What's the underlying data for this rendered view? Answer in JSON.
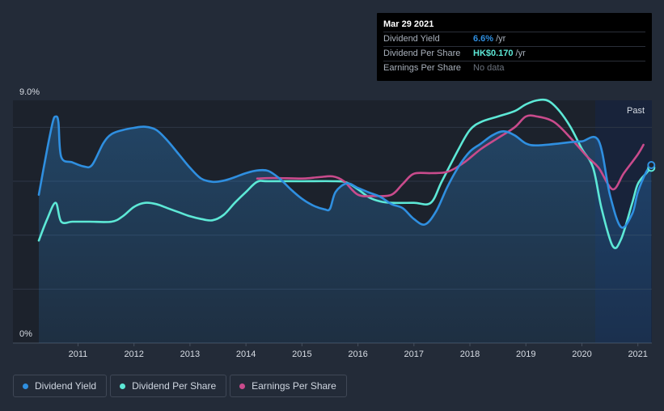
{
  "chart_data": {
    "type": "line",
    "y_top_label": "9.0%",
    "y_bottom_label": "0%",
    "ylim": [
      0,
      9.0
    ],
    "xlim": [
      2010.3,
      2021.25
    ],
    "x_ticks": [
      "2011",
      "2012",
      "2013",
      "2014",
      "2015",
      "2016",
      "2017",
      "2018",
      "2019",
      "2020",
      "2021"
    ],
    "past_label": "Past",
    "grid": true,
    "series": [
      {
        "name": "Dividend Yield",
        "color": "#2f8fe0",
        "axis": "percent",
        "points": [
          [
            2010.3,
            5.5
          ],
          [
            2010.45,
            7.2
          ],
          [
            2010.55,
            8.2
          ],
          [
            2010.6,
            8.4
          ],
          [
            2010.65,
            8.2
          ],
          [
            2010.7,
            6.9
          ],
          [
            2010.9,
            6.7
          ],
          [
            2011.1,
            6.55
          ],
          [
            2011.25,
            6.6
          ],
          [
            2011.45,
            7.4
          ],
          [
            2011.6,
            7.75
          ],
          [
            2011.8,
            7.9
          ],
          [
            2012.0,
            7.98
          ],
          [
            2012.2,
            8.02
          ],
          [
            2012.4,
            7.9
          ],
          [
            2012.6,
            7.5
          ],
          [
            2012.8,
            7.0
          ],
          [
            2013.0,
            6.5
          ],
          [
            2013.2,
            6.1
          ],
          [
            2013.4,
            5.98
          ],
          [
            2013.6,
            6.02
          ],
          [
            2013.8,
            6.15
          ],
          [
            2014.0,
            6.3
          ],
          [
            2014.2,
            6.4
          ],
          [
            2014.4,
            6.38
          ],
          [
            2014.6,
            6.1
          ],
          [
            2014.8,
            5.7
          ],
          [
            2015.0,
            5.35
          ],
          [
            2015.2,
            5.1
          ],
          [
            2015.4,
            4.96
          ],
          [
            2015.5,
            4.98
          ],
          [
            2015.6,
            5.6
          ],
          [
            2015.8,
            5.92
          ],
          [
            2016.0,
            5.75
          ],
          [
            2016.2,
            5.58
          ],
          [
            2016.4,
            5.42
          ],
          [
            2016.6,
            5.15
          ],
          [
            2016.8,
            5.0
          ],
          [
            2017.0,
            4.6
          ],
          [
            2017.2,
            4.4
          ],
          [
            2017.4,
            4.9
          ],
          [
            2017.6,
            5.8
          ],
          [
            2017.8,
            6.55
          ],
          [
            2018.0,
            7.1
          ],
          [
            2018.2,
            7.4
          ],
          [
            2018.4,
            7.7
          ],
          [
            2018.6,
            7.85
          ],
          [
            2018.8,
            7.7
          ],
          [
            2019.0,
            7.4
          ],
          [
            2019.2,
            7.33
          ],
          [
            2019.6,
            7.4
          ],
          [
            2019.8,
            7.45
          ],
          [
            2020.0,
            7.48
          ],
          [
            2020.3,
            7.5
          ],
          [
            2020.5,
            5.5
          ],
          [
            2020.7,
            4.3
          ],
          [
            2020.9,
            4.8
          ],
          [
            2021.0,
            5.6
          ],
          [
            2021.15,
            6.35
          ],
          [
            2021.24,
            6.6
          ]
        ]
      },
      {
        "name": "Dividend Per Share",
        "color": "#5de8d6",
        "axis": "percent",
        "points": [
          [
            2010.3,
            3.8
          ],
          [
            2010.45,
            4.6
          ],
          [
            2010.6,
            5.2
          ],
          [
            2010.7,
            4.5
          ],
          [
            2010.9,
            4.5
          ],
          [
            2011.2,
            4.5
          ],
          [
            2011.6,
            4.5
          ],
          [
            2011.8,
            4.7
          ],
          [
            2012.0,
            5.05
          ],
          [
            2012.2,
            5.2
          ],
          [
            2012.4,
            5.15
          ],
          [
            2012.6,
            5.0
          ],
          [
            2012.8,
            4.85
          ],
          [
            2013.0,
            4.7
          ],
          [
            2013.2,
            4.6
          ],
          [
            2013.4,
            4.55
          ],
          [
            2013.6,
            4.75
          ],
          [
            2013.8,
            5.2
          ],
          [
            2014.0,
            5.6
          ],
          [
            2014.2,
            5.98
          ],
          [
            2014.4,
            6.0
          ],
          [
            2015.0,
            6.0
          ],
          [
            2015.6,
            6.0
          ],
          [
            2015.8,
            5.95
          ],
          [
            2016.0,
            5.7
          ],
          [
            2016.2,
            5.4
          ],
          [
            2016.4,
            5.25
          ],
          [
            2016.6,
            5.2
          ],
          [
            2017.0,
            5.2
          ],
          [
            2017.3,
            5.2
          ],
          [
            2017.5,
            6.0
          ],
          [
            2017.8,
            7.2
          ],
          [
            2018.0,
            7.9
          ],
          [
            2018.2,
            8.2
          ],
          [
            2018.5,
            8.4
          ],
          [
            2018.8,
            8.6
          ],
          [
            2019.0,
            8.85
          ],
          [
            2019.2,
            9.0
          ],
          [
            2019.4,
            8.98
          ],
          [
            2019.6,
            8.6
          ],
          [
            2019.8,
            8.0
          ],
          [
            2020.0,
            7.2
          ],
          [
            2020.2,
            6.5
          ],
          [
            2020.35,
            5.0
          ],
          [
            2020.55,
            3.6
          ],
          [
            2020.7,
            3.85
          ],
          [
            2020.9,
            5.2
          ],
          [
            2021.0,
            5.9
          ],
          [
            2021.15,
            6.3
          ],
          [
            2021.24,
            6.5
          ]
        ]
      },
      {
        "name": "Earnings Per Share",
        "color": "#c94b8c",
        "axis": "percent",
        "points": [
          [
            2014.2,
            6.1
          ],
          [
            2014.5,
            6.12
          ],
          [
            2015.0,
            6.1
          ],
          [
            2015.3,
            6.15
          ],
          [
            2015.55,
            6.18
          ],
          [
            2015.75,
            6.0
          ],
          [
            2016.0,
            5.5
          ],
          [
            2016.3,
            5.45
          ],
          [
            2016.6,
            5.5
          ],
          [
            2016.8,
            5.9
          ],
          [
            2017.0,
            6.28
          ],
          [
            2017.3,
            6.3
          ],
          [
            2017.6,
            6.35
          ],
          [
            2017.9,
            6.7
          ],
          [
            2018.2,
            7.2
          ],
          [
            2018.5,
            7.6
          ],
          [
            2018.8,
            8.0
          ],
          [
            2019.0,
            8.4
          ],
          [
            2019.2,
            8.4
          ],
          [
            2019.5,
            8.2
          ],
          [
            2019.8,
            7.6
          ],
          [
            2020.1,
            6.9
          ],
          [
            2020.3,
            6.5
          ],
          [
            2020.55,
            5.7
          ],
          [
            2020.75,
            6.3
          ],
          [
            2021.0,
            7.0
          ],
          [
            2021.1,
            7.35
          ]
        ]
      }
    ]
  },
  "tooltip": {
    "date": "Mar 29 2021",
    "rows": [
      {
        "label": "Dividend Yield",
        "value": "6.6%",
        "unit": "/yr",
        "color": "#2f8fe0"
      },
      {
        "label": "Dividend Per Share",
        "value": "HK$0.170",
        "unit": "/yr",
        "color": "#5de8d6"
      },
      {
        "label": "Earnings Per Share",
        "value": "No data",
        "unit": "",
        "color": "#6c737e"
      }
    ]
  },
  "legend": [
    {
      "label": "Dividend Yield",
      "color": "#2f8fe0"
    },
    {
      "label": "Dividend Per Share",
      "color": "#5de8d6"
    },
    {
      "label": "Earnings Per Share",
      "color": "#c94b8c"
    }
  ]
}
